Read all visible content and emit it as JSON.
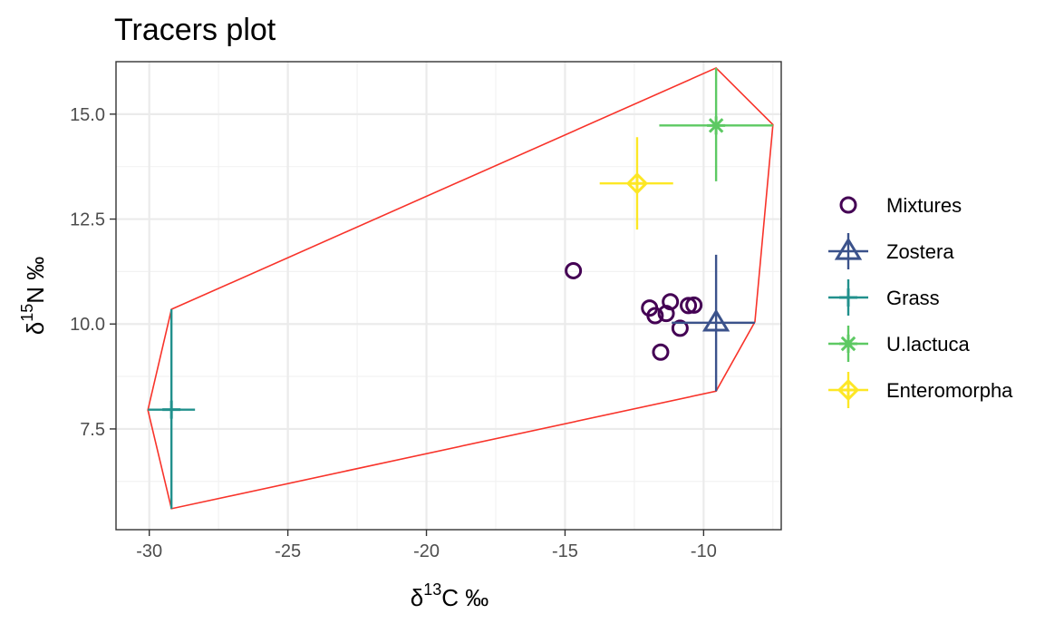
{
  "chart_data": {
    "type": "scatter",
    "title": "Tracers plot",
    "xlabel": {
      "symbol": "δ",
      "sup": "13",
      "element": "C",
      "unit": "‰"
    },
    "ylabel": {
      "symbol": "δ",
      "sup": "15",
      "element": "N",
      "unit": "‰"
    },
    "xlim": [
      -31.2,
      -7.2
    ],
    "ylim": [
      5.1,
      16.25
    ],
    "x_ticks": [
      {
        "value": -30,
        "label": "-30"
      },
      {
        "value": -25,
        "label": "-25"
      },
      {
        "value": -20,
        "label": "-20"
      },
      {
        "value": -15,
        "label": "-15"
      },
      {
        "value": -10,
        "label": "-10"
      }
    ],
    "y_ticks": [
      {
        "value": 7.5,
        "label": "7.5"
      },
      {
        "value": 10.0,
        "label": "10.0"
      },
      {
        "value": 12.5,
        "label": "12.5"
      },
      {
        "value": 15.0,
        "label": "15.0"
      }
    ],
    "grid": true,
    "legend_position": "right",
    "hull_color": "#f8332a",
    "hull": [
      [
        -29.2,
        10.35
      ],
      [
        -9.55,
        16.1
      ],
      [
        -7.5,
        14.75
      ],
      [
        -8.15,
        10.05
      ],
      [
        -9.55,
        8.4
      ],
      [
        -29.2,
        5.6
      ],
      [
        -30.05,
        7.95
      ]
    ],
    "series": [
      {
        "name": "Mixtures",
        "kind": "points",
        "shape": "circle",
        "color": "#440154",
        "points": [
          {
            "x": -14.7,
            "y": 11.27
          },
          {
            "x": -11.95,
            "y": 10.38
          },
          {
            "x": -11.75,
            "y": 10.2
          },
          {
            "x": -11.35,
            "y": 10.25
          },
          {
            "x": -11.2,
            "y": 10.53
          },
          {
            "x": -10.85,
            "y": 9.9
          },
          {
            "x": -10.55,
            "y": 10.44
          },
          {
            "x": -10.35,
            "y": 10.45
          },
          {
            "x": -11.55,
            "y": 9.33
          }
        ]
      },
      {
        "name": "Zostera",
        "kind": "source",
        "shape": "triangle",
        "color": "#3b528b",
        "mean": {
          "x": -9.55,
          "y": 10.03
        },
        "x_range": [
          -11.15,
          -8.15
        ],
        "y_range": [
          8.4,
          11.65
        ]
      },
      {
        "name": "Grass",
        "kind": "source",
        "shape": "plus",
        "color": "#21908c",
        "mean": {
          "x": -29.2,
          "y": 7.96
        },
        "x_range": [
          -30.05,
          -28.35
        ],
        "y_range": [
          5.6,
          10.35
        ]
      },
      {
        "name": "U.lactuca",
        "kind": "source",
        "shape": "asterisk",
        "color": "#5dc963",
        "mean": {
          "x": -9.55,
          "y": 14.73
        },
        "x_range": [
          -11.6,
          -7.5
        ],
        "y_range": [
          13.4,
          16.1
        ]
      },
      {
        "name": "Enteromorpha",
        "kind": "source",
        "shape": "diamond-plus",
        "color": "#fde725",
        "mean": {
          "x": -12.4,
          "y": 13.35
        },
        "x_range": [
          -13.75,
          -11.1
        ],
        "y_range": [
          12.25,
          14.45
        ]
      }
    ]
  }
}
